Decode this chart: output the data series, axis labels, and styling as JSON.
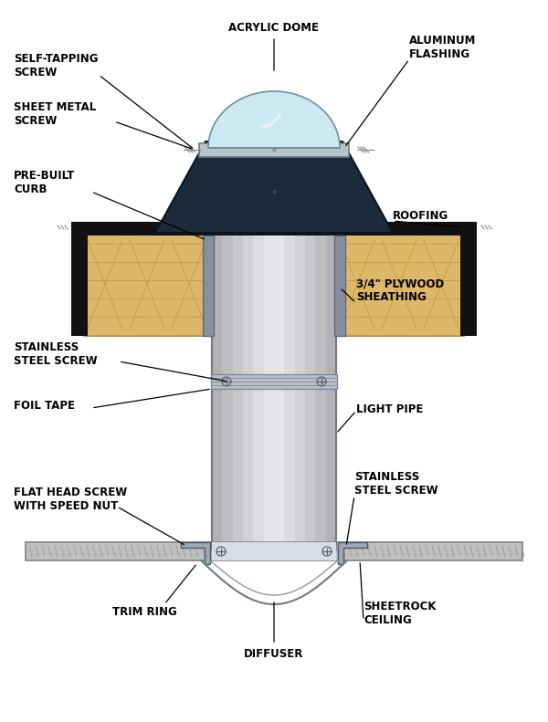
{
  "bg_color": "#ffffff",
  "fig_width": 6.0,
  "fig_height": 7.91,
  "labels": {
    "acrylic_dome": "ACRYLIC DOME",
    "aluminum_flashing": "ALUMINUM\nFLASHING",
    "self_tapping_screw": "SELF-TAPPING\nSCREW",
    "sheet_metal_screw": "SHEET METAL\nSCREW",
    "pre_built_curb": "PRE-BUILT\nCURB",
    "roofing": "ROOFING",
    "stainless_steel_screw_upper": "STAINLESS\nSTEEL SCREW",
    "foil_tape": "FOIL TAPE",
    "plywood_sheathing": "3/4\" PLYWOOD\nSHEATHING",
    "light_pipe": "LIGHT PIPE",
    "flat_head_screw": "FLAT HEAD SCREW\nWITH SPEED NUT",
    "stainless_steel_screw_lower": "STAINLESS\nSTEEL SCREW",
    "trim_ring": "TRIM RING",
    "diffuser": "DIFFUSER",
    "sheetrock_ceiling": "SHEETROCK\nCEILING"
  },
  "colors": {
    "dome_fill": "#cce8f0",
    "dome_edge": "#7090a0",
    "cap_dark": "#1c2b3a",
    "cap_rim": "#b8c4cc",
    "flashing_dark": "#111111",
    "wood_fill": "#deb86a",
    "wood_edge": "#a07830",
    "wood_grain": "#c8a040",
    "pipe_light": "#e0e4ea",
    "pipe_mid": "#c8cdd8",
    "pipe_dark": "#9098a8",
    "pipe_edge": "#707888",
    "ceiling_fill": "#c0c0c0",
    "ceiling_edge": "#808080",
    "metal_trim": "#a0a8b8",
    "screw_color": "#505060",
    "label_color": "#000000"
  }
}
